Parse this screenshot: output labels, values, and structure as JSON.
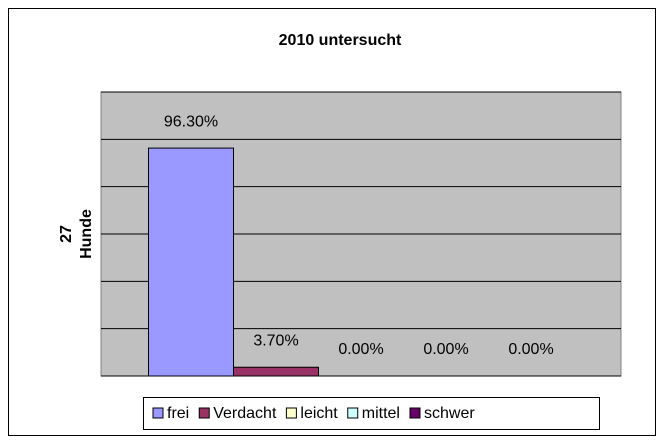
{
  "chart_data": {
    "type": "bar",
    "title": "2010 untersucht",
    "y_label_lines": [
      "27",
      "Hunde"
    ],
    "categories": [
      null
    ],
    "series": [
      {
        "name": "frei",
        "color": "#9999ff",
        "values": [
          96.3
        ],
        "value_labels": [
          "96.30%"
        ]
      },
      {
        "name": "Verdacht",
        "color": "#993366",
        "values": [
          3.7
        ],
        "value_labels": [
          "3.70%"
        ]
      },
      {
        "name": "leicht",
        "color": "#ffffcc",
        "values": [
          0
        ],
        "value_labels": [
          "0.00%"
        ]
      },
      {
        "name": "mittel",
        "color": "#ccffff",
        "values": [
          0
        ],
        "value_labels": [
          "0.00%"
        ]
      },
      {
        "name": "schwer",
        "color": "#660066",
        "values": [
          0
        ],
        "value_labels": [
          "0.00%"
        ]
      }
    ],
    "ylim": [
      0,
      120
    ],
    "yticks": [
      0,
      20,
      40,
      60,
      80,
      100,
      120
    ],
    "grid": true,
    "legend": "bottom"
  }
}
